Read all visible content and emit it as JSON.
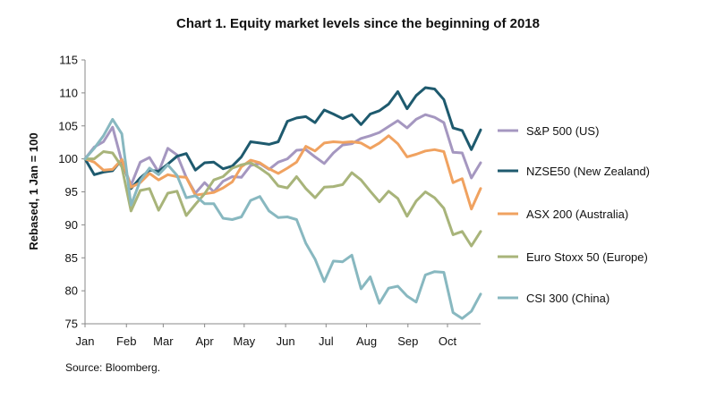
{
  "chart_data": {
    "type": "line",
    "title": "Chart 1. Equity market levels since the beginning of 2018",
    "ylabel": "Rebased, 1 Jan = 100",
    "xlabel": "",
    "ylim": [
      75,
      115
    ],
    "yticks": [
      75,
      80,
      85,
      90,
      95,
      100,
      105,
      110,
      115
    ],
    "x_period_weeks": 43,
    "xticks": [
      {
        "label": "Jan",
        "week": 0
      },
      {
        "label": "Feb",
        "week": 4.5
      },
      {
        "label": "Mar",
        "week": 8.5
      },
      {
        "label": "Apr",
        "week": 13
      },
      {
        "label": "May",
        "week": 17.3
      },
      {
        "label": "Jun",
        "week": 21.8
      },
      {
        "label": "Jul",
        "week": 26.2
      },
      {
        "label": "Aug",
        "week": 30.6
      },
      {
        "label": "Sep",
        "week": 35.1
      },
      {
        "label": "Oct",
        "week": 39.4
      }
    ],
    "series": [
      {
        "name": "S&P 500 (US)",
        "color": "#a597c0",
        "values": [
          100,
          101.8,
          102.6,
          104.8,
          99.6,
          96,
          99.5,
          100.2,
          98,
          101.6,
          100.6,
          97.2,
          94.8,
          96.4,
          95,
          96.6,
          97.3,
          97.2,
          99,
          99.3,
          98.4,
          99.5,
          100,
          101.3,
          101.4,
          100.3,
          99.3,
          100.9,
          102.1,
          102.3,
          103.1,
          103.5,
          104,
          104.9,
          105.8,
          104.7,
          106,
          106.7,
          106.3,
          105.5,
          101,
          100.9,
          97.1,
          99.4
        ]
      },
      {
        "name": "NZSE50 (New Zealand)",
        "color": "#1e5a6e",
        "values": [
          100,
          97.6,
          98,
          98.2,
          99.9,
          95.5,
          97.1,
          98.3,
          98.1,
          99.2,
          100.4,
          100.8,
          98.3,
          99.4,
          99.5,
          98.5,
          98.9,
          100.3,
          102.6,
          102.4,
          102.2,
          102.6,
          105.7,
          106.2,
          106.4,
          105.5,
          107.4,
          106.8,
          106.1,
          106.7,
          105.2,
          106.8,
          107.3,
          108.3,
          110.2,
          107.6,
          109.6,
          110.8,
          110.6,
          109,
          104.7,
          104.3,
          101.4,
          104.4
        ]
      },
      {
        "name": "ASX 200 (Australia)",
        "color": "#f0a260",
        "values": [
          100,
          99.5,
          98.3,
          98.4,
          99.9,
          95.7,
          96.4,
          97.8,
          96.8,
          97.6,
          97.3,
          97.2,
          94.5,
          94.7,
          94.9,
          95.6,
          96.5,
          98.8,
          99.8,
          99.4,
          98.5,
          97.8,
          98.6,
          99.5,
          101.9,
          101.2,
          102.4,
          102.6,
          102.5,
          102.6,
          102.4,
          101.6,
          102.4,
          103.5,
          102.3,
          100.3,
          100.7,
          101.2,
          101.4,
          101.1,
          96.4,
          97,
          92.4,
          95.5
        ]
      },
      {
        "name": "Euro Stoxx 50 (Europe)",
        "color": "#a8b47a",
        "values": [
          100,
          100,
          101.1,
          100.9,
          98.8,
          92.1,
          95.2,
          95.5,
          92.2,
          94.8,
          95.1,
          91.4,
          93.1,
          94.7,
          96.8,
          97.3,
          98.6,
          99.1,
          99.4,
          98.6,
          97.6,
          95.9,
          95.6,
          97.3,
          95.5,
          94.1,
          95.7,
          95.8,
          96.1,
          97.9,
          96.8,
          95.1,
          93.5,
          95.1,
          94,
          91.3,
          93.6,
          95,
          94.1,
          92.5,
          88.5,
          89,
          86.8,
          89
        ]
      },
      {
        "name": "CSI 300 (China)",
        "color": "#88b8c0",
        "values": [
          100,
          101.6,
          103.5,
          106,
          103.8,
          93,
          96.7,
          98.6,
          97.6,
          99.1,
          97.5,
          94.1,
          94.4,
          93.2,
          93.2,
          91,
          90.8,
          91.2,
          93.7,
          94.3,
          92.1,
          91.1,
          91.2,
          90.8,
          87.2,
          84.8,
          81.4,
          84.5,
          84.4,
          85.4,
          80.3,
          82.1,
          78.1,
          80.4,
          80.7,
          79.2,
          78.3,
          82.4,
          82.9,
          82.8,
          76.7,
          75.8,
          76.9,
          79.5
        ]
      }
    ]
  },
  "source": "Source: Bloomberg."
}
